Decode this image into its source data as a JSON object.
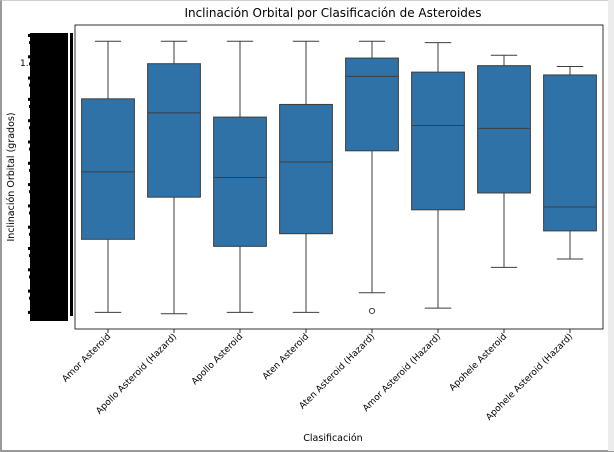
{
  "chart_data": {
    "type": "box",
    "title": "Inclinación Orbital por Clasificación de Asteroides",
    "xlabel": "Clasificación",
    "ylabel": "Inclinación Orbital (grados)",
    "y_tick_label_partial": "1.",
    "ylim": [
      0,
      1
    ],
    "color": "#2f72a8",
    "categories": [
      "Amor Asteroid",
      "Apollo Asteroid (Hazard)",
      "Apollo Asteroid",
      "Aten Asteroid",
      "Aten Asteroid (Hazard)",
      "Amor Asteroid (Hazard)",
      "Apohele Asteroid",
      "Apohele Asteroid (Hazard)"
    ],
    "boxes": [
      {
        "whislo": 0.02,
        "q1": 0.28,
        "med": 0.52,
        "q3": 0.78,
        "whishi": 0.985,
        "fliers": []
      },
      {
        "whislo": 0.015,
        "q1": 0.43,
        "med": 0.73,
        "q3": 0.905,
        "whishi": 0.985,
        "fliers": []
      },
      {
        "whislo": 0.02,
        "q1": 0.255,
        "med": 0.5,
        "q3": 0.715,
        "whishi": 0.985,
        "fliers": []
      },
      {
        "whislo": 0.02,
        "q1": 0.3,
        "med": 0.555,
        "q3": 0.76,
        "whishi": 0.985,
        "fliers": []
      },
      {
        "whislo": 0.09,
        "q1": 0.595,
        "med": 0.86,
        "q3": 0.925,
        "whishi": 0.985,
        "fliers": [
          0.025
        ]
      },
      {
        "whislo": 0.035,
        "q1": 0.385,
        "med": 0.685,
        "q3": 0.875,
        "whishi": 0.98,
        "fliers": []
      },
      {
        "whislo": 0.18,
        "q1": 0.445,
        "med": 0.675,
        "q3": 0.898,
        "whishi": 0.935,
        "fliers": []
      },
      {
        "whislo": 0.21,
        "q1": 0.31,
        "med": 0.395,
        "q3": 0.865,
        "whishi": 0.895,
        "fliers": []
      }
    ]
  }
}
